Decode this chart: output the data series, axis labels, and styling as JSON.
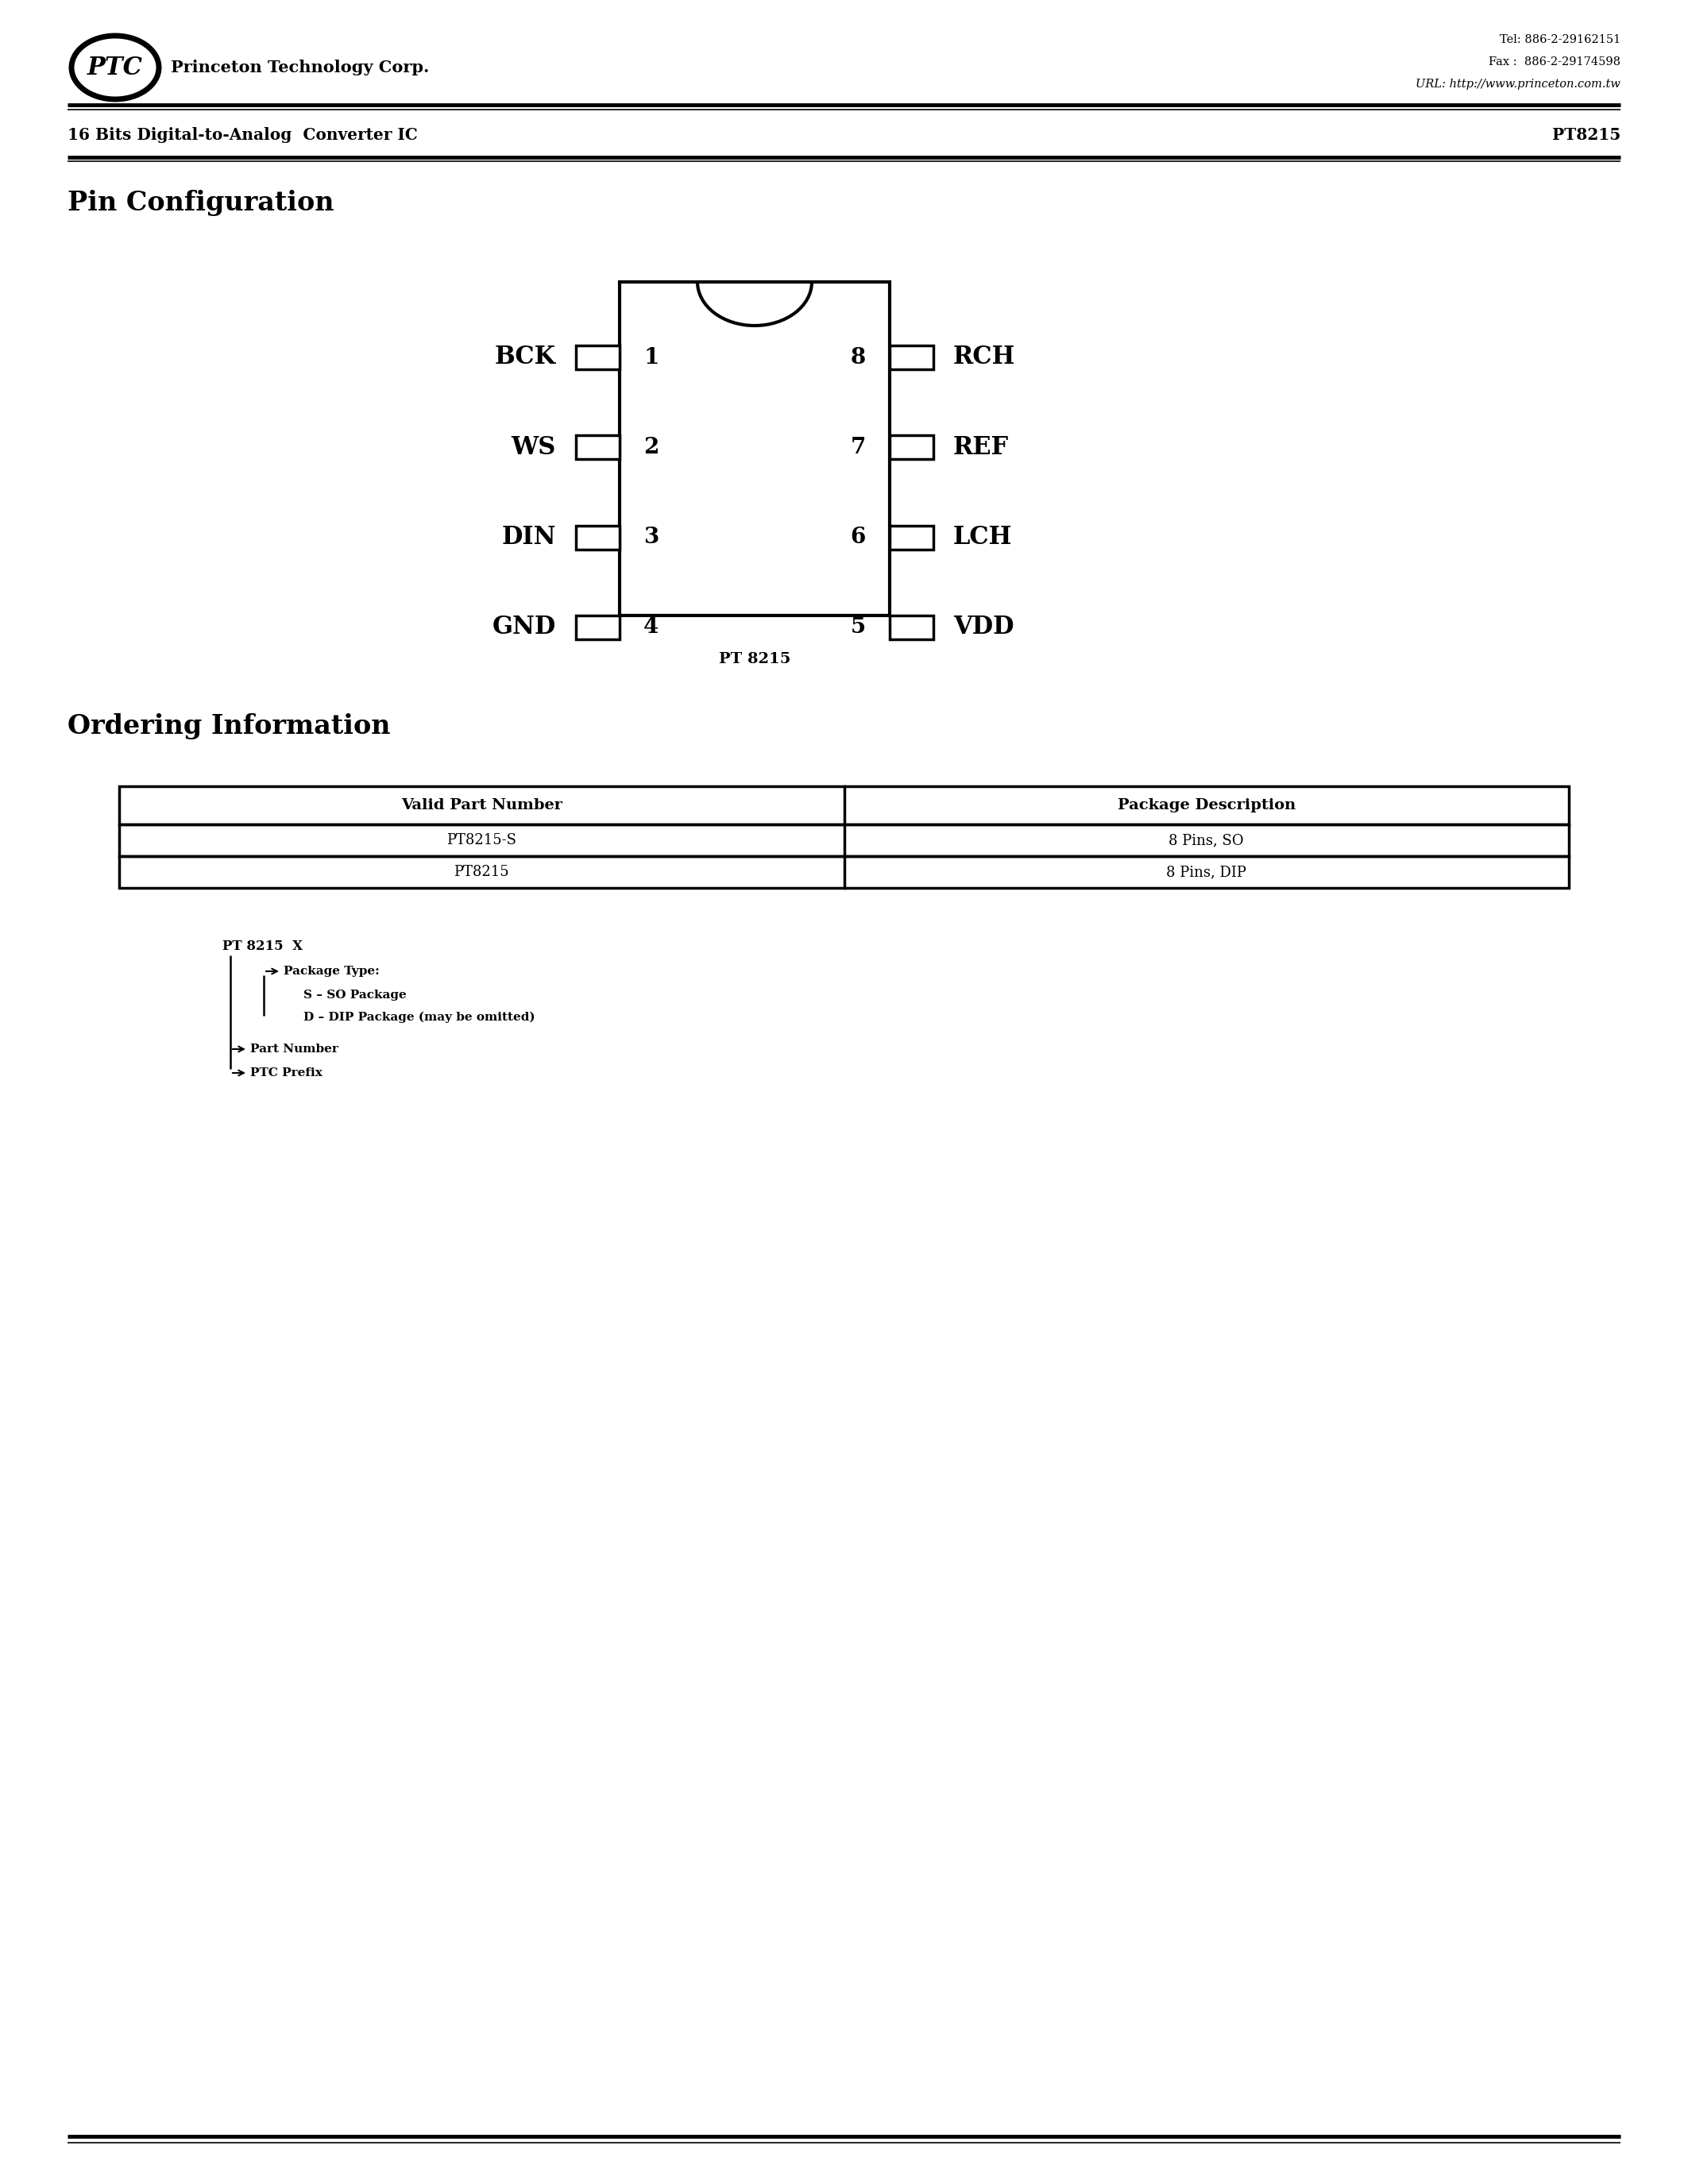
{
  "bg_color": "#ffffff",
  "page_width": 21.25,
  "page_height": 27.5,
  "header": {
    "company": "Princeton Technology Corp.",
    "tel": "Tel: 886-2-29162151",
    "fax": "Fax :  886-2-29174598",
    "url": "URL: http://www.princeton.com.tw"
  },
  "product_line": "16 Bits Digital-to-Analog  Converter IC",
  "product_number": "PT8215",
  "section1_title": "Pin Configuration",
  "ic_chip_label": "PT 8215",
  "left_pins": [
    {
      "num": "1",
      "name": "BCK"
    },
    {
      "num": "2",
      "name": "WS"
    },
    {
      "num": "3",
      "name": "DIN"
    },
    {
      "num": "4",
      "name": "GND"
    }
  ],
  "right_pins": [
    {
      "num": "8",
      "name": "RCH"
    },
    {
      "num": "7",
      "name": "REF"
    },
    {
      "num": "6",
      "name": "LCH"
    },
    {
      "num": "5",
      "name": "VDD"
    }
  ],
  "section2_title": "Ordering Information",
  "table_headers": [
    "Valid Part Number",
    "Package Description"
  ],
  "table_rows": [
    [
      "PT8215-S",
      "8 Pins, SO"
    ],
    [
      "PT8215",
      "8 Pins, DIP"
    ]
  ],
  "ordering_label": "PT 8215  X",
  "ordering_items": [
    {
      "text": "Package Type:",
      "bold": true,
      "level": 2
    },
    {
      "text": "S – SO Package",
      "bold": true,
      "level": 3
    },
    {
      "text": "D – DIP Package (may be omitted)",
      "bold": true,
      "level": 3
    },
    {
      "text": "Part Number",
      "bold": true,
      "level": 2
    },
    {
      "text": "PTC Prefix",
      "bold": true,
      "level": 1
    }
  ]
}
